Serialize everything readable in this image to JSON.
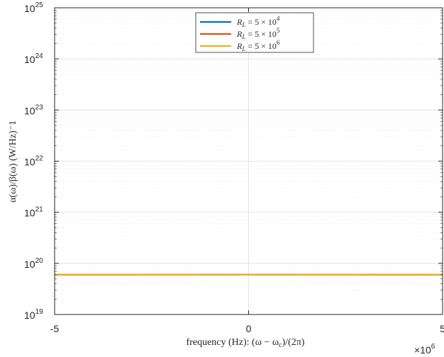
{
  "chart_data": {
    "type": "line",
    "xlabel": "frequency (Hz):  (ω − ω",
    "xlabel_sub": "c",
    "xlabel_tail": ")/(2π)",
    "ylabel": "α(ω)/β(ω)  (W/Hz)⁻1",
    "x_multiplier": "×10",
    "x_multiplier_exp": "6",
    "xlim": [
      -5,
      5
    ],
    "ylim_exponents": [
      19,
      25
    ],
    "x_ticks": [
      {
        "value": -5,
        "label": "-5"
      },
      {
        "value": 0,
        "label": "0"
      },
      {
        "value": 5,
        "label": "5"
      }
    ],
    "y_ticks": [
      {
        "exp": 19,
        "base": "10",
        "sup": "19"
      },
      {
        "exp": 20,
        "base": "10",
        "sup": "20"
      },
      {
        "exp": 21,
        "base": "10",
        "sup": "21"
      },
      {
        "exp": 22,
        "base": "10",
        "sup": "22"
      },
      {
        "exp": 23,
        "base": "10",
        "sup": "23"
      },
      {
        "exp": 24,
        "base": "10",
        "sup": "24"
      },
      {
        "exp": 25,
        "base": "10",
        "sup": "25"
      }
    ],
    "y_scale": "log",
    "grid": true,
    "legend_position": "top-center",
    "series": [
      {
        "name": "R_L = 5 × 10^4",
        "legend": {
          "prefix": "R",
          "sub": "L",
          "mid": " = 5 × 10",
          "sup": "4"
        },
        "color": "#0072BD",
        "model": {
          "floor": 6e+19,
          "coef": 8800000.0
        }
      },
      {
        "name": "R_L = 5 × 10^5",
        "legend": {
          "prefix": "R",
          "sub": "L",
          "mid": " = 5 × 10",
          "sup": "5"
        },
        "color": "#D95319",
        "model": {
          "floor": 6e+19,
          "coef": 880000000.0
        }
      },
      {
        "name": "R_L = 5 × 10^6",
        "legend": {
          "prefix": "R",
          "sub": "L",
          "mid": " = 5 × 10",
          "sup": "6"
        },
        "color": "#EDB120",
        "model": {
          "floor": 6e+19,
          "coef": 88000000000.0
        }
      }
    ]
  }
}
